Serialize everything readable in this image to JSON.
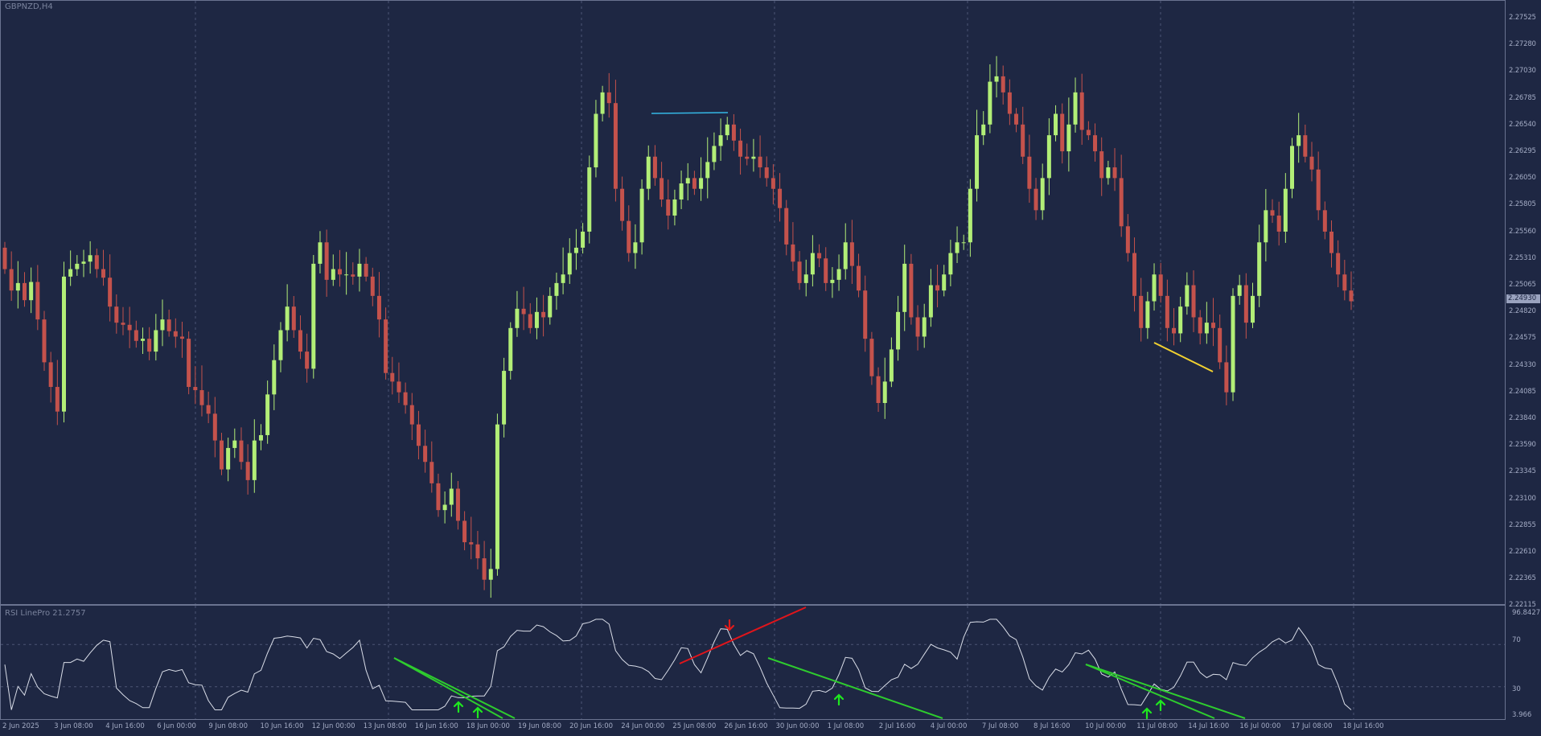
{
  "symbol_label": "GBPNZD,H4",
  "rsi_label": "RSI LinePro 21.2757",
  "current_price": "2.24930",
  "price_ticks": [
    "2.27525",
    "2.27280",
    "2.27030",
    "2.26785",
    "2.26540",
    "2.26295",
    "2.26050",
    "2.25805",
    "2.25560",
    "2.25310",
    "2.25065",
    "2.24820",
    "2.24575",
    "2.24330",
    "2.24085",
    "2.23840",
    "2.23590",
    "2.23345",
    "2.23100",
    "2.22855",
    "2.22610",
    "2.22365",
    "2.22115"
  ],
  "rsi_ticks": [
    "96.8427",
    "70",
    "30",
    "3.966"
  ],
  "time_ticks": [
    "2 Jun 2025",
    "3 Jun 08:00",
    "4 Jun 16:00",
    "6 Jun 00:00",
    "9 Jun 08:00",
    "10 Jun 16:00",
    "12 Jun 00:00",
    "13 Jun 08:00",
    "16 Jun 16:00",
    "18 Jun 00:00",
    "19 Jun 08:00",
    "20 Jun 16:00",
    "24 Jun 00:00",
    "25 Jun 08:00",
    "26 Jun 16:00",
    "30 Jun 00:00",
    "1 Jul 08:00",
    "2 Jul 16:00",
    "4 Jul 00:00",
    "7 Jul 08:00",
    "8 Jul 16:00",
    "10 Jul 00:00",
    "11 Jul 08:00",
    "14 Jul 16:00",
    "16 Jul 00:00",
    "17 Jul 08:00",
    "18 Jul 16:00"
  ],
  "colors": {
    "background": "#1e2743",
    "bull": "#b2ee77",
    "bear": "#c4524c",
    "grid": "#4c5675",
    "rsi_line": "#d9dde8",
    "trend_green": "#2ecc2e",
    "trend_red": "#e0151b",
    "arrow_green": "#1fe81f",
    "arrow_red": "#e01b1b",
    "level_cyan": "#35b8e6",
    "divergence_yellow": "#f2d130"
  },
  "chart_data": {
    "type": "candlestick",
    "title": "GBPNZD,H4",
    "ylim": [
      2.22115,
      2.2765
    ],
    "closes": [
      2.2525,
      2.2505,
      2.2512,
      2.2496,
      2.2513,
      2.2478,
      2.2438,
      2.2415,
      2.2392,
      2.2518,
      2.2525,
      2.253,
      2.2532,
      2.2538,
      2.2525,
      2.2517,
      2.249,
      2.2475,
      2.2473,
      2.2468,
      2.2458,
      2.246,
      2.2448,
      2.2468,
      2.2478,
      2.2467,
      2.2462,
      2.246,
      2.2415,
      2.2412,
      2.2398,
      2.239,
      2.2365,
      2.2338,
      2.2358,
      2.2365,
      2.2345,
      2.2328,
      2.2365,
      2.237,
      2.2408,
      2.244,
      2.2468,
      2.249,
      2.2468,
      2.2448,
      2.2432,
      2.253,
      2.255,
      2.2515,
      2.2525,
      2.252,
      2.252,
      2.2518,
      2.253,
      2.2518,
      2.25,
      2.2478,
      2.2428,
      2.242,
      2.241,
      2.2398,
      2.238,
      2.236,
      2.2345,
      2.2325,
      2.23,
      2.2305,
      2.232,
      2.229,
      2.227,
      2.2268,
      2.2255,
      2.2235,
      2.2245,
      2.238,
      2.243,
      2.247,
      2.2488,
      2.2483,
      2.247,
      2.2485,
      2.248,
      2.25,
      2.2512,
      2.252,
      2.254,
      2.2545,
      2.256,
      2.262,
      2.267,
      2.269,
      2.268,
      2.26,
      2.257,
      2.254,
      2.255,
      2.26,
      2.263,
      2.261,
      2.259,
      2.2575,
      2.259,
      2.2605,
      2.261,
      2.26,
      2.261,
      2.2625,
      2.264,
      2.265,
      2.266,
      2.2645,
      2.263,
      2.2628,
      2.263,
      2.262,
      2.261,
      2.26,
      2.2582,
      2.2548,
      2.2532,
      2.2512,
      2.252,
      2.254,
      2.2535,
      2.2512,
      2.2515,
      2.2525,
      2.255,
      2.2528,
      2.2505,
      2.246,
      2.2425,
      2.24,
      2.242,
      2.245,
      2.2485,
      2.253,
      2.248,
      2.2462,
      2.248,
      2.251,
      2.2505,
      2.252,
      2.254,
      2.255,
      2.255,
      2.26,
      2.265,
      2.266,
      2.27,
      2.2705,
      2.269,
      2.267,
      2.266,
      2.263,
      2.26,
      2.258,
      2.261,
      2.265,
      2.267,
      2.2635,
      2.266,
      2.269,
      2.2655,
      2.265,
      2.2635,
      2.261,
      2.262,
      2.261,
      2.2565,
      2.254,
      2.25,
      2.247,
      2.2495,
      2.252,
      2.25,
      2.247,
      2.2465,
      2.249,
      2.251,
      2.248,
      2.2465,
      2.2475,
      2.247,
      2.2438,
      2.241,
      2.25,
      2.251,
      2.2475,
      2.25,
      2.255,
      2.258,
      2.2575,
      2.256,
      2.26,
      2.264,
      2.265,
      2.263,
      2.2618,
      2.258,
      2.256,
      2.254,
      2.252,
      2.2505,
      2.2495
    ]
  }
}
